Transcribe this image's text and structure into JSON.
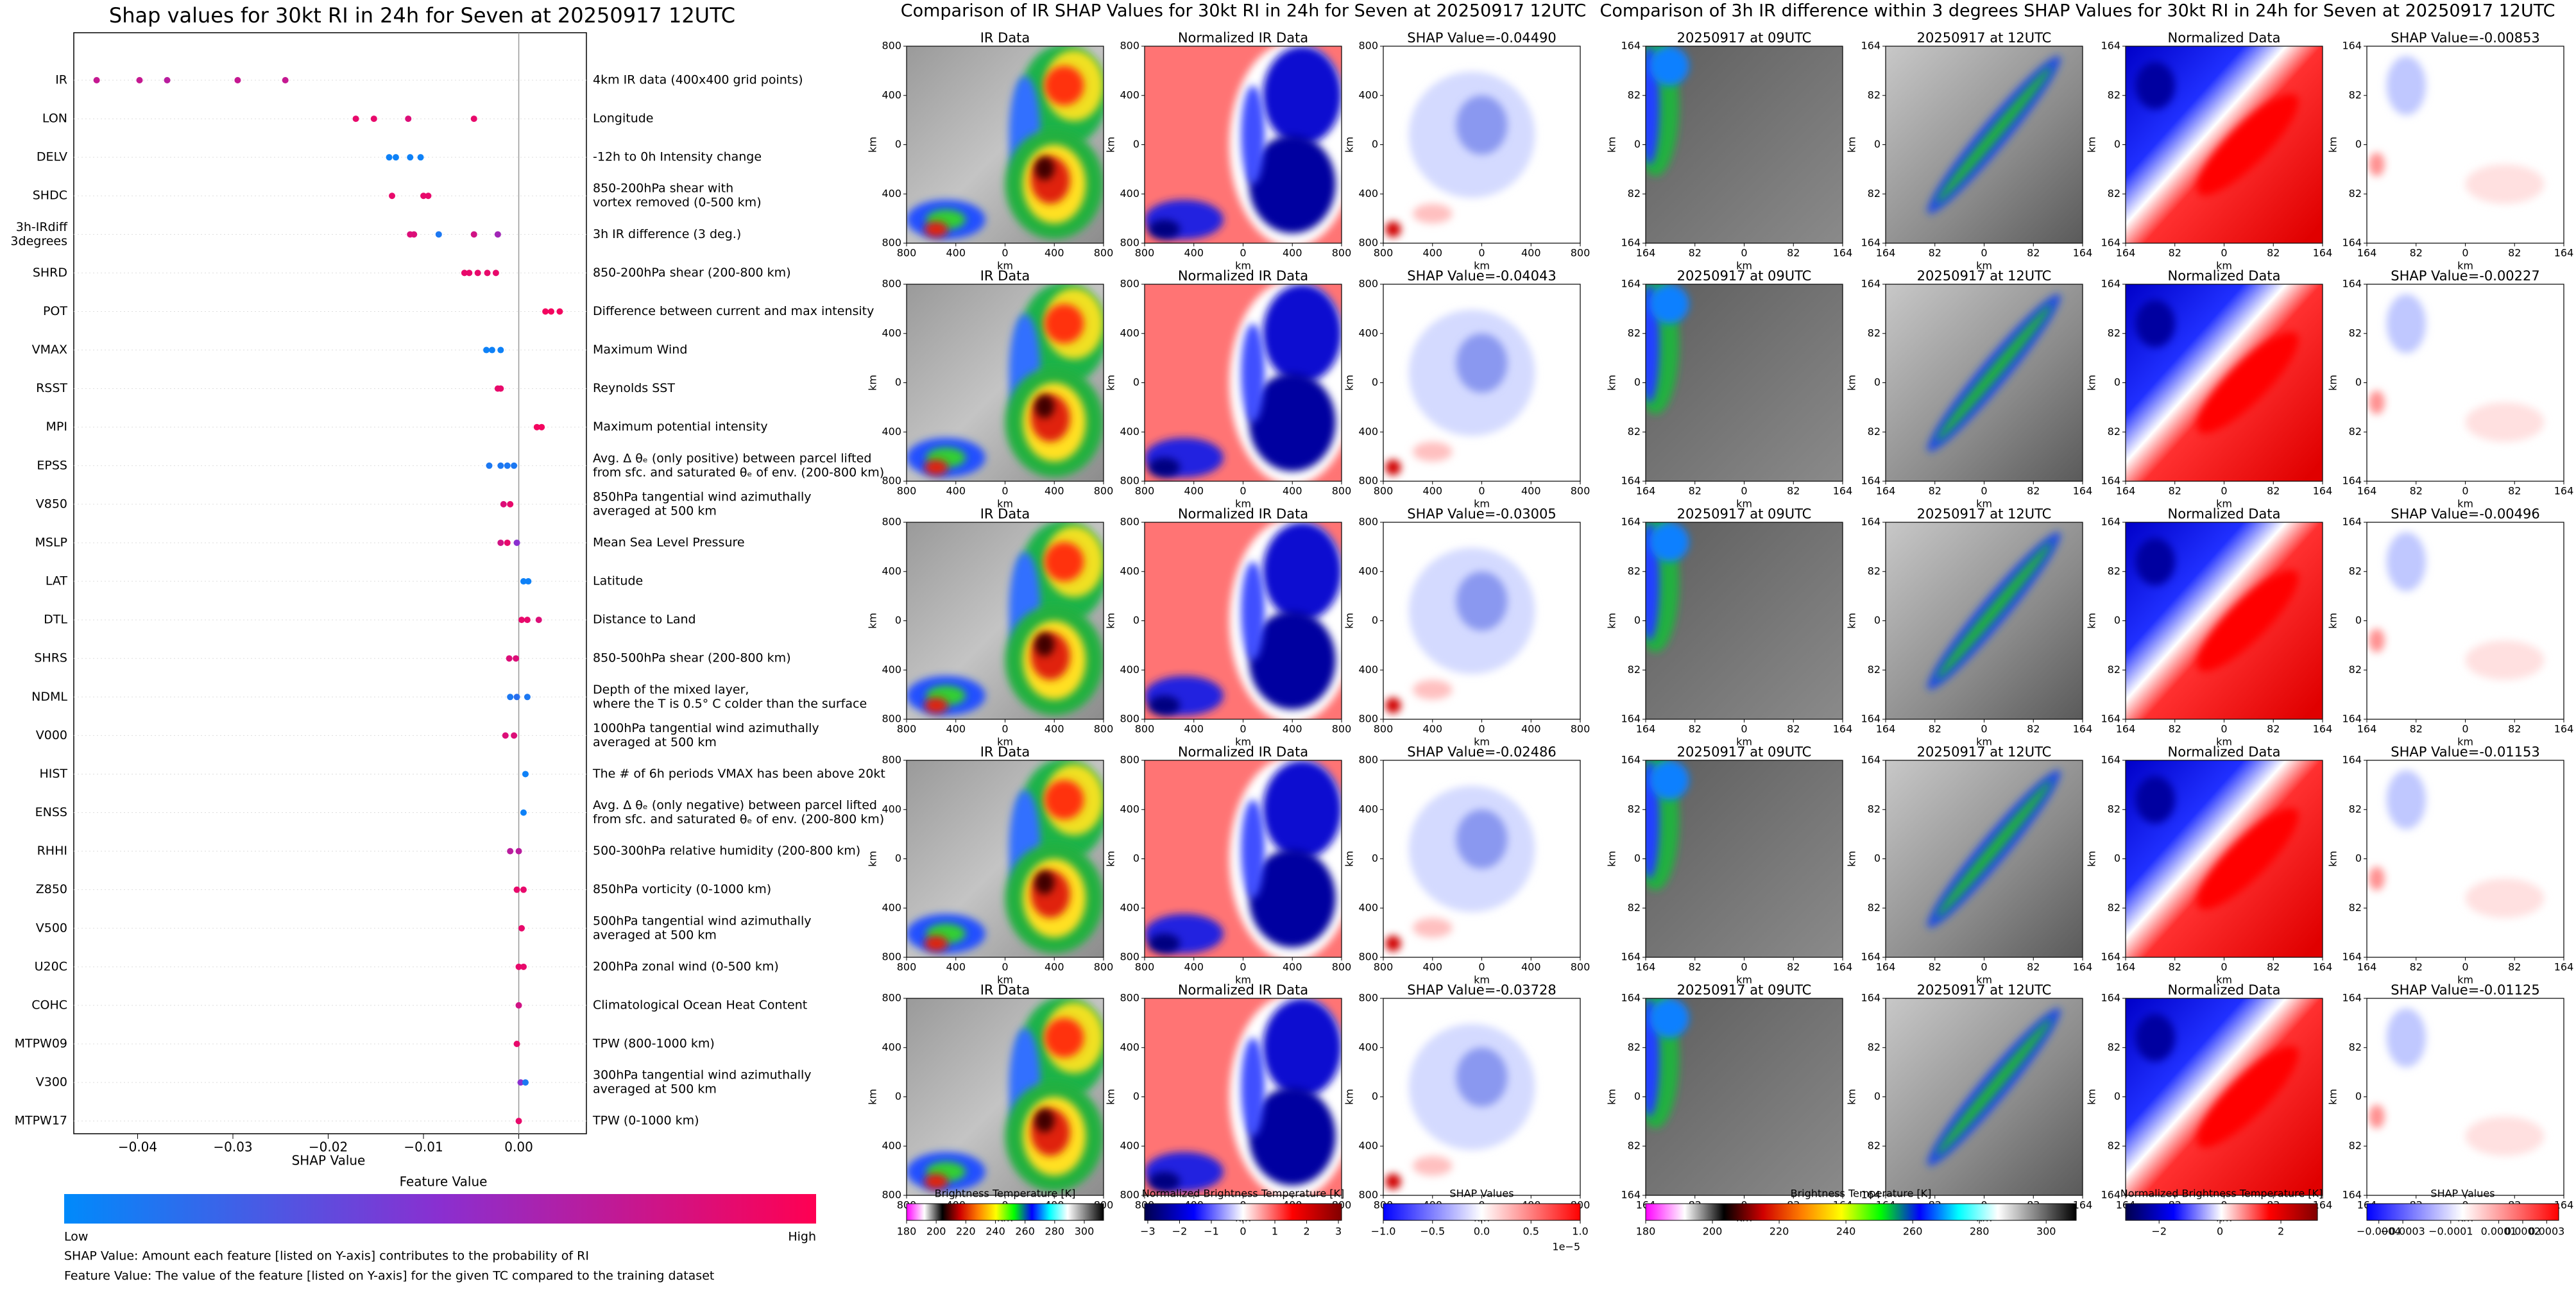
{
  "chart_data": {
    "type": "scatter",
    "title": "Shap values for 30kt RI in 24h for Seven at 20250917 12UTC",
    "xlabel": "SHAP Value",
    "xlim": [
      -0.0467,
      0.0071
    ],
    "xticks": [
      {
        "value": -0.04,
        "label": "−0.04"
      },
      {
        "value": -0.03,
        "label": "−0.03"
      },
      {
        "value": -0.02,
        "label": "−0.02"
      },
      {
        "value": -0.01,
        "label": "−0.01"
      },
      {
        "value": 0,
        "label": "0.00"
      }
    ],
    "features": [
      {
        "name": [
          "IR"
        ],
        "description": [
          "4km IR data (400x400 grid points)"
        ],
        "shap": [
          -0.0443,
          -0.0398,
          -0.0369,
          -0.0295,
          -0.0245
        ],
        "feature_value": [
          0.75,
          0.75,
          0.7,
          0.75,
          0.75
        ]
      },
      {
        "name": [
          "LON"
        ],
        "description": [
          "Longitude"
        ],
        "shap": [
          -0.0171,
          -0.0152,
          -0.0116,
          -0.0047
        ],
        "feature_value": [
          0.9,
          0.9,
          0.85,
          0.9
        ]
      },
      {
        "name": [
          "DELV"
        ],
        "description": [
          "-12h to 0h Intensity change"
        ],
        "shap": [
          -0.0136,
          -0.0129,
          -0.0114,
          -0.0103
        ],
        "feature_value": [
          0.05,
          0.05,
          0.05,
          0.05
        ]
      },
      {
        "name": [
          "SHDC"
        ],
        "description": [
          "850-200hPa shear with",
          "vortex removed (0-500 km)"
        ],
        "shap": [
          -0.0133,
          -0.01,
          -0.0095
        ],
        "feature_value": [
          0.9,
          0.9,
          0.9
        ]
      },
      {
        "name": [
          "3h-IRdiff",
          "3degrees"
        ],
        "description": [
          "3h IR difference (3 deg.)"
        ],
        "shap": [
          -0.0114,
          -0.011,
          -0.0084,
          -0.0047,
          -0.0022
        ],
        "feature_value": [
          0.85,
          0.85,
          0.1,
          0.8,
          0.6
        ]
      },
      {
        "name": [
          "SHRD"
        ],
        "description": [
          "850-200hPa shear (200-800 km)"
        ],
        "shap": [
          -0.0057,
          -0.0052,
          -0.0043,
          -0.0033,
          -0.0024
        ],
        "feature_value": [
          0.9,
          0.9,
          0.9,
          0.9,
          0.9
        ]
      },
      {
        "name": [
          "POT"
        ],
        "description": [
          "Difference between current and max intensity"
        ],
        "shap": [
          0.0028,
          0.0034,
          0.0043
        ],
        "feature_value": [
          0.95,
          0.95,
          0.95
        ]
      },
      {
        "name": [
          "VMAX"
        ],
        "description": [
          "Maximum Wind"
        ],
        "shap": [
          -0.0034,
          -0.0028,
          -0.0019
        ],
        "feature_value": [
          0.05,
          0.05,
          0.05
        ]
      },
      {
        "name": [
          "RSST"
        ],
        "description": [
          "Reynolds SST"
        ],
        "shap": [
          -0.0022,
          -0.0019
        ],
        "feature_value": [
          0.9,
          0.9
        ]
      },
      {
        "name": [
          "MPI"
        ],
        "description": [
          "Maximum potential intensity"
        ],
        "shap": [
          0.0019,
          0.0024
        ],
        "feature_value": [
          0.95,
          0.95
        ]
      },
      {
        "name": [
          "EPSS"
        ],
        "description": [
          "Avg. Δ θₑ (only positive) between parcel lifted",
          "from sfc. and saturated θₑ of env. (200-800 km)"
        ],
        "shap": [
          -0.0031,
          -0.0019,
          -0.0012,
          -0.0005
        ],
        "feature_value": [
          0.1,
          0.1,
          0.1,
          0.1
        ]
      },
      {
        "name": [
          "V850"
        ],
        "description": [
          "850hPa tangential wind azimuthally",
          "averaged at 500 km"
        ],
        "shap": [
          -0.0016,
          -0.0009
        ],
        "feature_value": [
          0.85,
          0.9
        ]
      },
      {
        "name": [
          "MSLP"
        ],
        "description": [
          "Mean Sea Level Pressure"
        ],
        "shap": [
          -0.0019,
          -0.0012,
          -0.0002
        ],
        "feature_value": [
          0.8,
          0.9,
          0.5
        ]
      },
      {
        "name": [
          "LAT"
        ],
        "description": [
          "Latitude"
        ],
        "shap": [
          0.0005,
          0.001
        ],
        "feature_value": [
          0.05,
          0.05
        ]
      },
      {
        "name": [
          "DTL"
        ],
        "description": [
          "Distance to Land"
        ],
        "shap": [
          0.0003,
          0.0009,
          0.0021
        ],
        "feature_value": [
          0.9,
          0.9,
          0.85
        ]
      },
      {
        "name": [
          "SHRS"
        ],
        "description": [
          "850-500hPa shear (200-800 km)"
        ],
        "shap": [
          -0.001,
          -0.0003
        ],
        "feature_value": [
          0.85,
          0.85
        ]
      },
      {
        "name": [
          "NDML"
        ],
        "description": [
          "Depth of the mixed layer,",
          "where the T is 0.5° C colder than the surface"
        ],
        "shap": [
          -0.0009,
          -0.0002,
          0.0009
        ],
        "feature_value": [
          0.1,
          0.15,
          0.1
        ]
      },
      {
        "name": [
          "V000"
        ],
        "description": [
          "1000hPa tangential wind azimuthally",
          "averaged at 500 km"
        ],
        "shap": [
          -0.0014,
          -0.0005
        ],
        "feature_value": [
          0.85,
          0.85
        ]
      },
      {
        "name": [
          "HIST"
        ],
        "description": [
          "The # of 6h periods VMAX has been above 20kt"
        ],
        "shap": [
          0.0007
        ],
        "feature_value": [
          0.05
        ]
      },
      {
        "name": [
          "ENSS"
        ],
        "description": [
          "Avg. Δ θₑ (only negative) between parcel lifted",
          "from sfc. and saturated θₑ of env. (200-800 km)"
        ],
        "shap": [
          0.0005
        ],
        "feature_value": [
          0.05
        ]
      },
      {
        "name": [
          "RHHI"
        ],
        "description": [
          "500-300hPa relative humidity (200-800 km)"
        ],
        "shap": [
          -0.0009,
          0.0
        ],
        "feature_value": [
          0.7,
          0.7
        ]
      },
      {
        "name": [
          "Z850"
        ],
        "description": [
          "850hPa vorticity (0-1000 km)"
        ],
        "shap": [
          -0.0002,
          0.0005
        ],
        "feature_value": [
          0.9,
          0.9
        ]
      },
      {
        "name": [
          "V500"
        ],
        "description": [
          "500hPa tangential wind azimuthally",
          "averaged at 500 km"
        ],
        "shap": [
          0.0003
        ],
        "feature_value": [
          0.9
        ]
      },
      {
        "name": [
          "U20C"
        ],
        "description": [
          "200hPa zonal wind (0-500 km)"
        ],
        "shap": [
          0.0,
          0.0005
        ],
        "feature_value": [
          0.9,
          0.9
        ]
      },
      {
        "name": [
          "COHC"
        ],
        "description": [
          "Climatological Ocean Heat Content"
        ],
        "shap": [
          0.0
        ],
        "feature_value": [
          0.8
        ]
      },
      {
        "name": [
          "MTPW09"
        ],
        "description": [
          "TPW (800-1000 km)"
        ],
        "shap": [
          -0.0002
        ],
        "feature_value": [
          0.9
        ]
      },
      {
        "name": [
          "V300"
        ],
        "description": [
          "300hPa tangential wind azimuthally",
          "averaged at 500 km"
        ],
        "shap": [
          0.0002,
          0.0007
        ],
        "feature_value": [
          0.5,
          0.1
        ]
      },
      {
        "name": [
          "MTPW17"
        ],
        "description": [
          "TPW (0-1000 km)"
        ],
        "shap": [
          0.0
        ],
        "feature_value": [
          0.9
        ]
      }
    ],
    "colorbar": {
      "title": "Feature Value",
      "low": "Low",
      "high": "High",
      "colors": [
        "#008afb",
        "#8a2fd0",
        "#ff0052"
      ]
    },
    "notes": [
      "SHAP Value: Amount each feature [listed on Y-axis] contributes to the probability of RI",
      "Feature Value: The value of the feature [listed on Y-axis] for the given TC compared to the training dataset"
    ]
  },
  "image_panels": {
    "titles": [
      "Comparison of IR SHAP Values for 30kt RI in 24h for Seven at 20250917 12UTC",
      "Comparison of 3h IR difference within 3 degrees SHAP Values for 30kt RI in 24h for Seven at 20250917 12UTC"
    ],
    "axis_label": "km",
    "ir_ticks": [
      800,
      400,
      0,
      400,
      800
    ],
    "diff_ticks": [
      164,
      82,
      0,
      82,
      164
    ],
    "rows": [
      [
        "IR Data",
        "Normalized IR Data",
        "SHAP Value=-0.04490",
        "20250917 at 09UTC",
        "20250917 at 12UTC",
        "Normalized Data",
        "SHAP Value=-0.00853"
      ],
      [
        "IR Data",
        "Normalized IR Data",
        "SHAP Value=-0.04043",
        "20250917 at 09UTC",
        "20250917 at 12UTC",
        "Normalized Data",
        "SHAP Value=-0.00227"
      ],
      [
        "IR Data",
        "Normalized IR Data",
        "SHAP Value=-0.03005",
        "20250917 at 09UTC",
        "20250917 at 12UTC",
        "Normalized Data",
        "SHAP Value=-0.00496"
      ],
      [
        "IR Data",
        "Normalized IR Data",
        "SHAP Value=-0.02486",
        "20250917 at 09UTC",
        "20250917 at 12UTC",
        "Normalized Data",
        "SHAP Value=-0.01153"
      ],
      [
        "IR Data",
        "Normalized IR Data",
        "SHAP Value=-0.03728",
        "20250917 at 09UTC",
        "20250917 at 12UTC",
        "Normalized Data",
        "SHAP Value=-0.01125"
      ]
    ],
    "colorbars": [
      {
        "label": "Brightness Temperature [K]",
        "lim": [
          180,
          313
        ],
        "ticks": [
          180,
          200,
          220,
          240,
          260,
          280,
          300
        ],
        "colors": [
          "#ff00ff",
          "#ffffff",
          "#000000",
          "#d00000",
          "#ff8000",
          "#ffff00",
          "#00ff00",
          "#0000ff",
          "#00ffff",
          "#ffffff",
          "#808080",
          "#000000"
        ]
      },
      {
        "label": "Normalized Brightness Temperature [K]",
        "lim": [
          -3.1,
          3.1
        ],
        "ticks": [
          {
            "value": -3,
            "label": "−3"
          },
          {
            "value": -2,
            "label": "−2"
          },
          {
            "value": -1,
            "label": "−1"
          },
          0,
          1,
          2,
          3
        ],
        "colors": [
          "#00004c",
          "#0000ff",
          "#ffffff",
          "#ff0000",
          "#800000"
        ]
      },
      {
        "label": "SHAP Values",
        "lim": [
          -1,
          1
        ],
        "ticks": [
          {
            "value": -1,
            "label": "−1.0"
          },
          {
            "value": -0.5,
            "label": "−0.5"
          },
          {
            "value": 0,
            "label": "0.0"
          },
          0.5,
          {
            "value": 1,
            "label": "1.0"
          }
        ],
        "colors": [
          "#0000ff",
          "#ffffff",
          "#ff0000"
        ],
        "offset": "1e−5"
      },
      {
        "label": "Brightness Temperature [K]",
        "lim": [
          180,
          309
        ],
        "ticks": [
          180,
          200,
          220,
          240,
          260,
          280,
          300
        ],
        "colors": [
          "#ff00ff",
          "#ffffff",
          "#000000",
          "#d00000",
          "#ff8000",
          "#ffff00",
          "#00ff00",
          "#0000ff",
          "#00ffff",
          "#ffffff",
          "#808080",
          "#000000"
        ]
      },
      {
        "label": "Normalized Brightness Temperature [K]",
        "lim": [
          -3.1,
          3.2
        ],
        "ticks": [
          {
            "value": -2,
            "label": "−2"
          },
          0,
          2
        ],
        "colors": [
          "#00004c",
          "#0000ff",
          "#ffffff",
          "#ff0000",
          "#800000"
        ]
      },
      {
        "label": "SHAP Values",
        "lim": [
          -0.00045,
          0.00035
        ],
        "ticks": [
          {
            "value": -0.0004,
            "label": "−0.0004"
          },
          {
            "value": -0.0003,
            "label": "−0.0003"
          },
          {
            "value": -0.0001,
            "label": "−0.0001"
          },
          {
            "value": 0.0001,
            "label": "0.0001"
          },
          {
            "value": 0.0002,
            "label": "0.0002"
          },
          {
            "value": 0.0003,
            "label": "0.0003"
          }
        ],
        "colors": [
          "#0000ff",
          "#ffffff",
          "#ff0000"
        ]
      }
    ]
  }
}
